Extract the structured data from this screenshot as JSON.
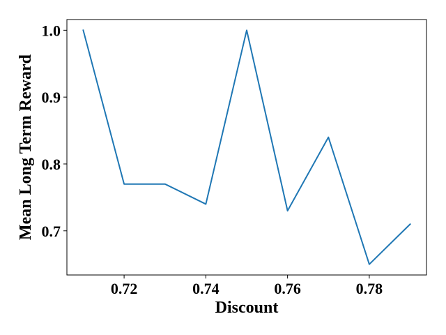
{
  "chart_data": {
    "type": "line",
    "title": "",
    "xlabel": "Discount",
    "ylabel": "Mean Long Term Reward",
    "xlim": [
      0.706,
      0.794
    ],
    "ylim": [
      0.634,
      1.016
    ],
    "x_ticks": [
      0.72,
      0.74,
      0.76,
      0.78
    ],
    "x_tick_labels": [
      "0.72",
      "0.74",
      "0.76",
      "0.78"
    ],
    "y_ticks": [
      0.7,
      0.8,
      0.9,
      1.0
    ],
    "y_tick_labels": [
      "0.7",
      "0.8",
      "0.9",
      "1.0"
    ],
    "grid": false,
    "series": [
      {
        "color": "#1f77b4",
        "x": [
          0.71,
          0.72,
          0.73,
          0.74,
          0.75,
          0.76,
          0.77,
          0.78,
          0.79
        ],
        "y": [
          1.0,
          0.77,
          0.77,
          0.74,
          1.0,
          0.73,
          0.84,
          0.65,
          0.71
        ]
      }
    ]
  }
}
